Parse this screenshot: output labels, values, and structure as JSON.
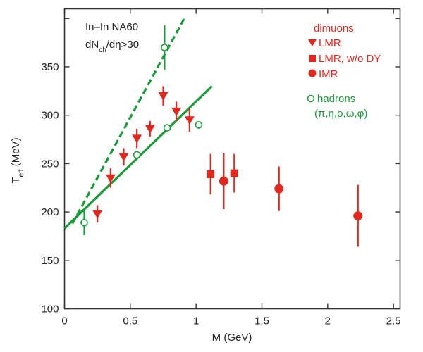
{
  "chart_data": {
    "type": "scatter",
    "xlabel": "M (GeV)",
    "ylabel": "T",
    "ylabel_sub": "eff",
    "ylabel_unit": " (MeV)",
    "xlim": [
      0,
      2.55
    ],
    "ylim": [
      100,
      410
    ],
    "xticks": [
      0,
      0.5,
      1,
      1.5,
      2,
      2.5
    ],
    "xtick_labels": [
      "0",
      "0.5",
      "1",
      "1.5",
      "2",
      "2.5"
    ],
    "yticks": [
      100,
      150,
      200,
      250,
      300,
      350
    ],
    "ytick_labels": [
      "100",
      "150",
      "200",
      "250",
      "300",
      "350"
    ],
    "yticks_unlabeled": [
      400
    ],
    "annotation": {
      "line1": "In–In NA60",
      "line2_a": "dN",
      "line2_sub": "ch",
      "line2_b": "/dη>30"
    },
    "legend": {
      "placement": "top-right",
      "dimuons_title": "dimuons",
      "lmr": "LMR",
      "lmr_wo_dy": "LMR, w/o DY",
      "imr": "IMR",
      "hadrons_title": "hadrons",
      "hadrons_list": "(π,η,ρ,ω,φ)"
    },
    "colors": {
      "dimuons": "#e0281e",
      "hadrons": "#1a9a3a"
    },
    "series": [
      {
        "name": "LMR",
        "marker": "triangle-down",
        "color": "#e0281e",
        "points": [
          {
            "x": 0.25,
            "y": 198,
            "err": 9
          },
          {
            "x": 0.35,
            "y": 235,
            "err": 10
          },
          {
            "x": 0.45,
            "y": 257,
            "err": 9
          },
          {
            "x": 0.55,
            "y": 276,
            "err": 10
          },
          {
            "x": 0.65,
            "y": 286,
            "err": 8
          },
          {
            "x": 0.75,
            "y": 320,
            "err": 10
          },
          {
            "x": 0.85,
            "y": 304,
            "err": 10
          },
          {
            "x": 0.95,
            "y": 295,
            "err": 12
          }
        ]
      },
      {
        "name": "LMR, w/o DY",
        "marker": "square",
        "color": "#e0281e",
        "points": [
          {
            "x": 1.11,
            "y": 239,
            "err": 21
          },
          {
            "x": 1.29,
            "y": 240,
            "err": 20
          }
        ]
      },
      {
        "name": "IMR",
        "marker": "circle",
        "color": "#e0281e",
        "points": [
          {
            "x": 1.21,
            "y": 232,
            "err": 29
          },
          {
            "x": 1.63,
            "y": 224,
            "err": 23
          },
          {
            "x": 2.23,
            "y": 196,
            "err": 32
          }
        ]
      },
      {
        "name": "hadrons (π,η,ρ,ω,φ)",
        "marker": "open-circle",
        "color": "#1a9a3a",
        "points": [
          {
            "x": 0.15,
            "y": 189,
            "err": 13
          },
          {
            "x": 0.55,
            "y": 259,
            "err": 0
          },
          {
            "x": 0.78,
            "y": 287,
            "err": 0
          },
          {
            "x": 1.02,
            "y": 290,
            "err": 0
          },
          {
            "x": 0.76,
            "y": 370,
            "err": 23
          }
        ]
      }
    ],
    "lines": [
      {
        "style": "solid",
        "color": "#1a9a3a",
        "x1": 0.0,
        "y1": 183,
        "x2": 1.12,
        "y2": 330
      },
      {
        "style": "dashed",
        "color": "#1a9a3a",
        "x1": 0.06,
        "y1": 188,
        "x2": 0.91,
        "y2": 400
      }
    ]
  }
}
